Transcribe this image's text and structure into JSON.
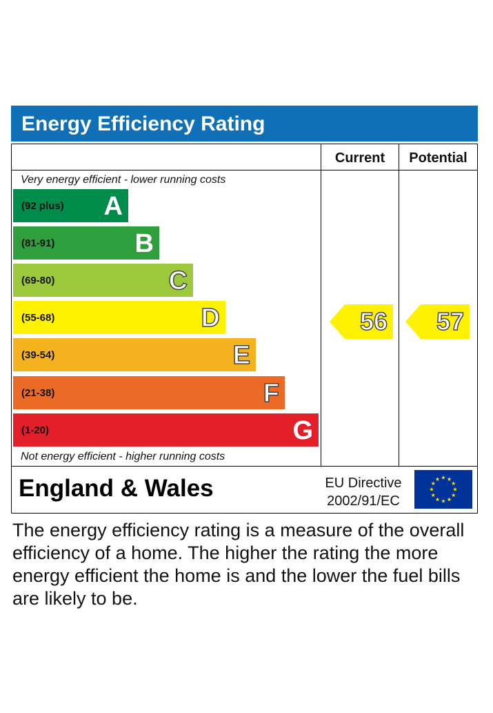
{
  "header": {
    "title": "Energy Efficiency Rating"
  },
  "columns": {
    "current": "Current",
    "potential": "Potential"
  },
  "captions": {
    "top": "Very energy efficient - lower running costs",
    "bottom": "Not energy efficient - higher running costs"
  },
  "chart_data": {
    "type": "bar",
    "title": "Energy Efficiency Rating",
    "bands": [
      {
        "letter": "A",
        "range": "(92 plus)",
        "min": 92,
        "max": 100,
        "color": "#008c4a",
        "letter_color": "#ffffff"
      },
      {
        "letter": "B",
        "range": "(81-91)",
        "min": 81,
        "max": 91,
        "color": "#2e9f3c",
        "letter_color": "#ffffff"
      },
      {
        "letter": "C",
        "range": "(69-80)",
        "min": 69,
        "max": 80,
        "color": "#9cc93b",
        "letter_color": "#ffffff"
      },
      {
        "letter": "D",
        "range": "(55-68)",
        "min": 55,
        "max": 68,
        "color": "#fff200",
        "letter_color": "#ffffff"
      },
      {
        "letter": "E",
        "range": "(39-54)",
        "min": 39,
        "max": 54,
        "color": "#f5b21f",
        "letter_color": "#ffffff"
      },
      {
        "letter": "F",
        "range": "(21-38)",
        "min": 21,
        "max": 38,
        "color": "#eb6a26",
        "letter_color": "#ffffff"
      },
      {
        "letter": "G",
        "range": "(1-20)",
        "min": 1,
        "max": 20,
        "color": "#e3202a",
        "letter_color": "#ffffff"
      }
    ],
    "series": [
      {
        "name": "Current",
        "value": 56,
        "band": "D"
      },
      {
        "name": "Potential",
        "value": 57,
        "band": "D"
      }
    ]
  },
  "ratings": {
    "current": "56",
    "potential": "57",
    "arrow_color": "#fff200"
  },
  "footer": {
    "region": "England & Wales",
    "directive_line1": "EU Directive",
    "directive_line2": "2002/91/EC",
    "flag_color": "#003399",
    "star_color": "#ffdd00",
    "flag_icon": "eu-flag-icon"
  },
  "description": "The energy efficiency rating is a measure of the overall efficiency of a home. The higher the rating the more energy efficient the home is and the lower the fuel bills are likely to be."
}
